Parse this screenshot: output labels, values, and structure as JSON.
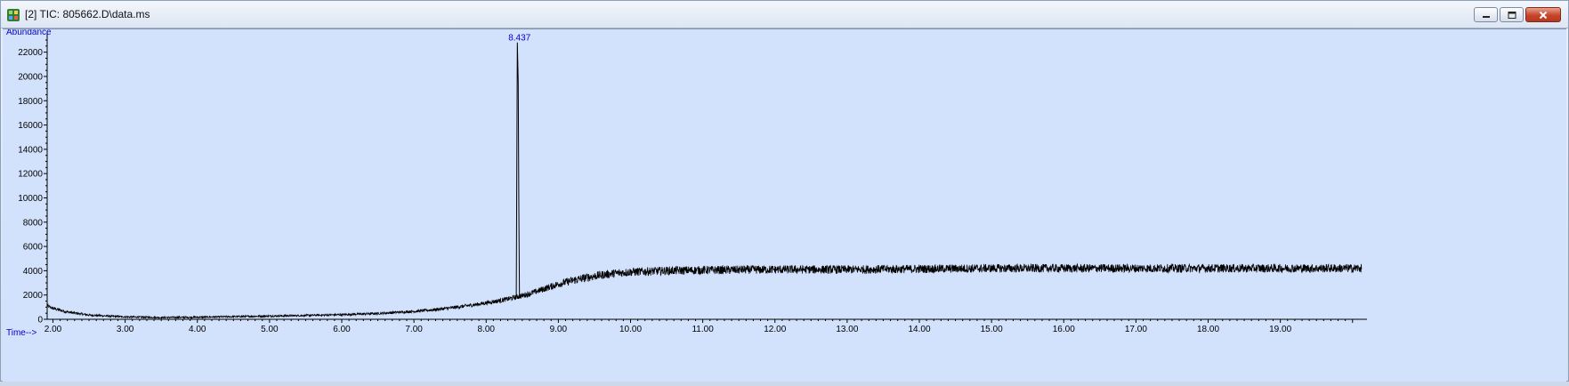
{
  "window": {
    "title": "[2] TIC: 805662.D\\data.ms",
    "controls": {
      "minimize": "minimize",
      "maximize": "maximize",
      "close": "close"
    }
  },
  "colors": {
    "plot_background": "#d3e2fc",
    "trace": "#000000",
    "axis": "#000000",
    "label_blue": "#0000cc"
  },
  "chart_data": {
    "type": "line",
    "title": "",
    "ylabel": "Abundance",
    "xlabel": "Time-->",
    "xlim": [
      1.92,
      20.2
    ],
    "ylim": [
      0,
      23000
    ],
    "x_ticks": [
      "2.00",
      "3.00",
      "4.00",
      "5.00",
      "6.00",
      "7.00",
      "8.00",
      "9.00",
      "10.00",
      "11.00",
      "12.00",
      "13.00",
      "14.00",
      "15.00",
      "16.00",
      "17.00",
      "18.00",
      "19.00"
    ],
    "y_ticks": [
      "0",
      "2000",
      "4000",
      "6000",
      "8000",
      "10000",
      "12000",
      "14000",
      "16000",
      "18000",
      "20000",
      "22000"
    ],
    "grid": false,
    "legend": "none",
    "annotations": [
      {
        "text": "8.437",
        "x": 8.437,
        "y": 22800
      }
    ],
    "peaks": [
      {
        "rt": 8.437,
        "apex": 22800
      }
    ],
    "series": [
      {
        "name": "",
        "x": [
          1.92,
          2.0,
          2.2,
          2.5,
          3.0,
          3.5,
          4.0,
          4.5,
          5.0,
          5.5,
          6.0,
          6.5,
          7.0,
          7.3,
          7.6,
          7.9,
          8.2,
          8.4,
          8.6,
          8.8,
          9.0,
          9.2,
          9.4,
          9.6,
          9.8,
          10.0,
          10.5,
          11.0,
          12.0,
          13.0,
          14.0,
          15.0,
          16.0,
          17.0,
          18.0,
          19.0,
          20.2
        ],
        "y": [
          1100,
          900,
          600,
          350,
          200,
          150,
          170,
          220,
          270,
          320,
          380,
          480,
          650,
          800,
          1000,
          1250,
          1550,
          1800,
          2100,
          2500,
          2900,
          3200,
          3450,
          3650,
          3800,
          3900,
          4000,
          4050,
          4100,
          4100,
          4150,
          4200,
          4200,
          4200,
          4200,
          4200,
          4200
        ],
        "noise": 350
      }
    ]
  }
}
